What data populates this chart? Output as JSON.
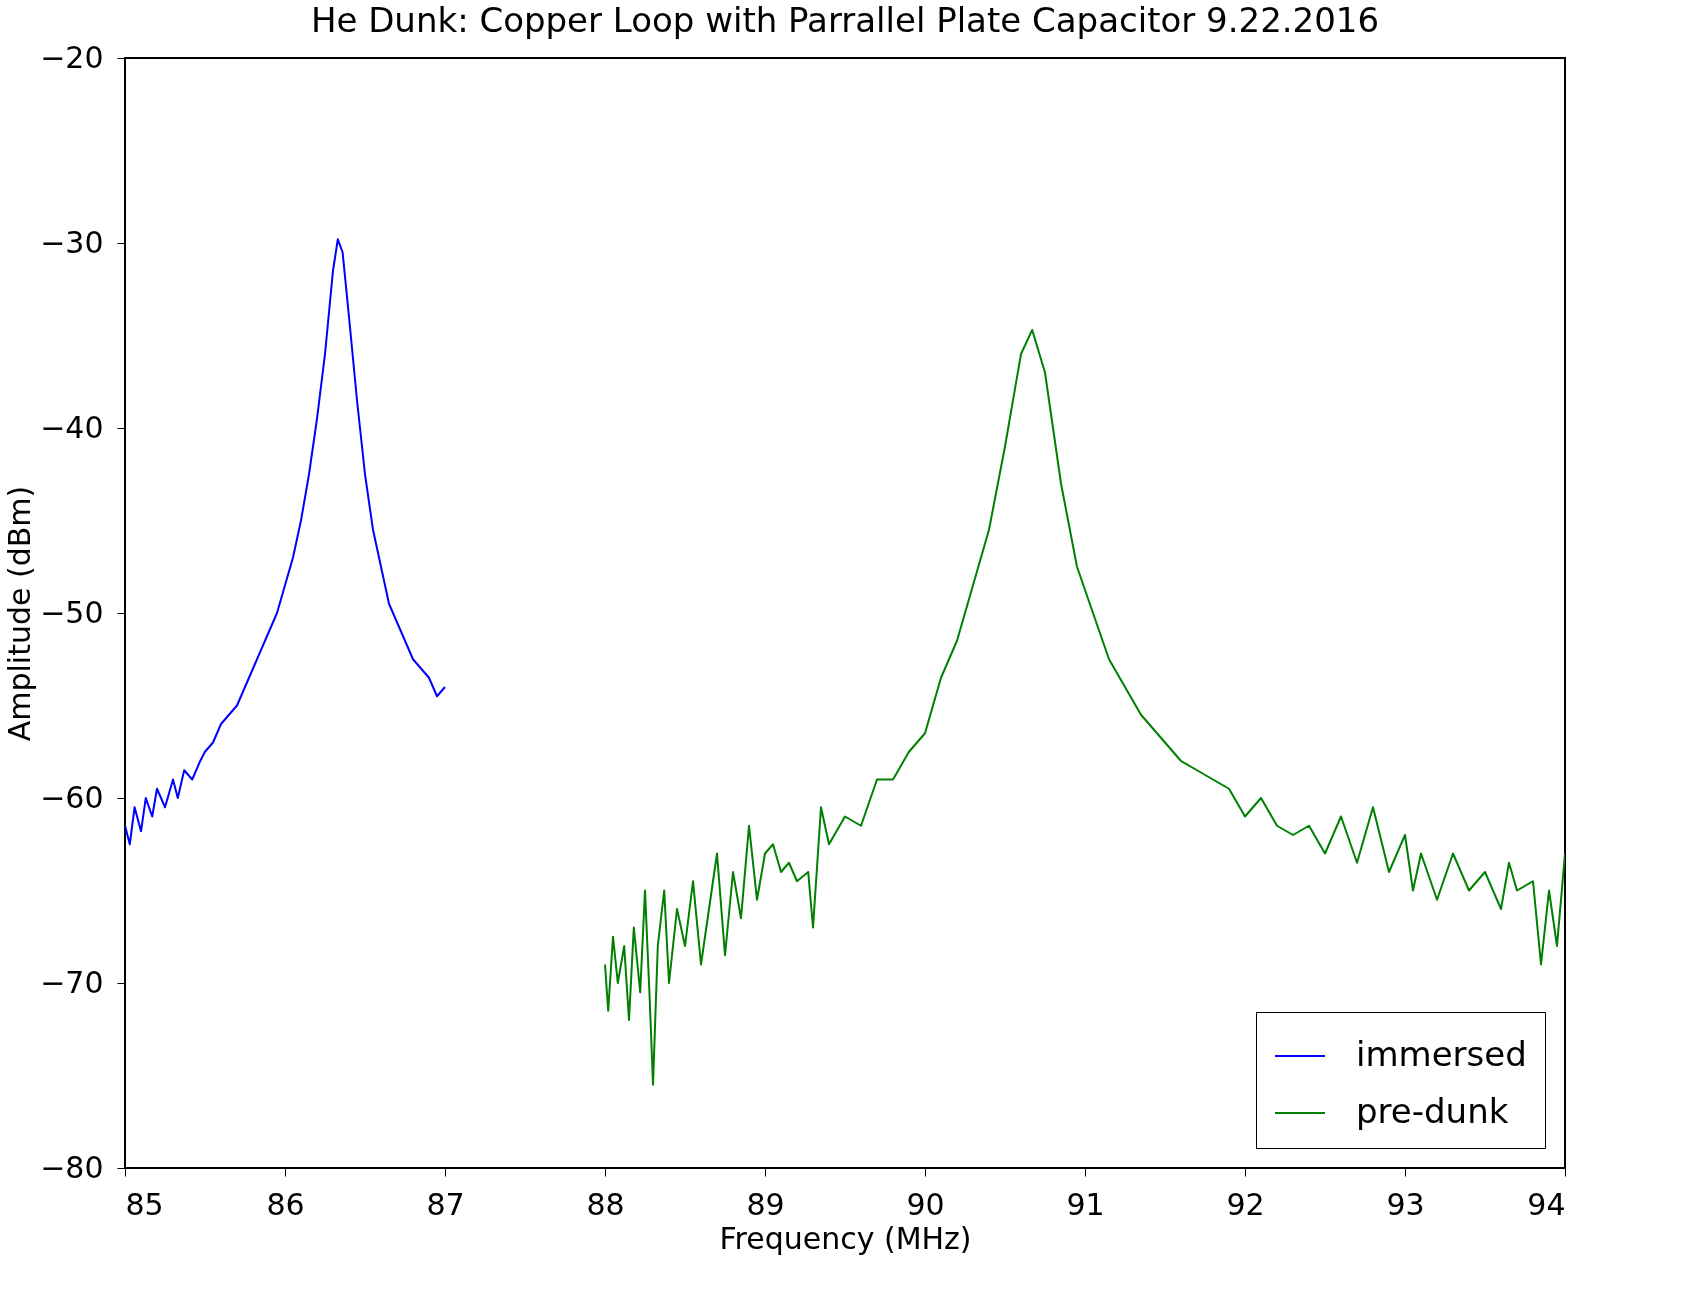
{
  "chart_data": {
    "type": "line",
    "title": "He Dunk: Copper Loop with Parrallel Plate Capacitor 9.22.2016",
    "xlabel": "Frequency (MHz)",
    "ylabel": "Amplitude (dBm)",
    "xlim": [
      85,
      94
    ],
    "xticks": [
      85,
      86,
      87,
      88,
      89,
      90,
      91,
      92,
      93,
      94
    ],
    "ylim": [
      -80,
      -20
    ],
    "yticks": [
      -80,
      -70,
      -60,
      -50,
      -40,
      -30,
      -20
    ],
    "grid": false,
    "legend": "bottom right",
    "marker": "none",
    "line_style": "solid",
    "series": [
      {
        "name": "immersed",
        "color": "#0000ff",
        "x": [
          85.0,
          85.03,
          85.06,
          85.1,
          85.13,
          85.17,
          85.2,
          85.25,
          85.3,
          85.33,
          85.37,
          85.42,
          85.47,
          85.5,
          85.55,
          85.6,
          85.65,
          85.7,
          85.75,
          85.8,
          85.85,
          85.9,
          85.95,
          86.0,
          86.05,
          86.1,
          86.15,
          86.2,
          86.25,
          86.3,
          86.33,
          86.36,
          86.4,
          86.45,
          86.5,
          86.55,
          86.6,
          86.65,
          86.7,
          86.75,
          86.8,
          86.85,
          86.9,
          86.95,
          87.0
        ],
        "values": [
          -61.5,
          -62.5,
          -60.5,
          -61.8,
          -60,
          -61,
          -59.5,
          -60.5,
          -59,
          -60,
          -58.5,
          -59,
          -58,
          -57.5,
          -57,
          -56,
          -55.5,
          -55,
          -54,
          -53,
          -52,
          -51,
          -50,
          -48.5,
          -47,
          -45,
          -42.5,
          -39.5,
          -36,
          -31.5,
          -29.8,
          -30.5,
          -34,
          -38.5,
          -42.5,
          -45.5,
          -47.5,
          -49.5,
          -50.5,
          -51.5,
          -52.5,
          -53,
          -53.5,
          -54.5,
          -54
        ]
      },
      {
        "name": "pre-dunk",
        "color": "#008000",
        "x": [
          88.0,
          88.02,
          88.05,
          88.08,
          88.12,
          88.15,
          88.18,
          88.22,
          88.25,
          88.28,
          88.3,
          88.33,
          88.37,
          88.4,
          88.45,
          88.5,
          88.55,
          88.6,
          88.65,
          88.7,
          88.75,
          88.8,
          88.85,
          88.9,
          88.95,
          89.0,
          89.05,
          89.1,
          89.15,
          89.2,
          89.27,
          89.3,
          89.35,
          89.4,
          89.5,
          89.6,
          89.7,
          89.8,
          89.9,
          90.0,
          90.1,
          90.2,
          90.3,
          90.4,
          90.5,
          90.6,
          90.67,
          90.75,
          90.85,
          90.95,
          91.05,
          91.15,
          91.25,
          91.35,
          91.5,
          91.6,
          91.7,
          91.8,
          91.9,
          92.0,
          92.1,
          92.2,
          92.3,
          92.4,
          92.5,
          92.6,
          92.7,
          92.8,
          92.9,
          93.0,
          93.05,
          93.1,
          93.2,
          93.3,
          93.4,
          93.5,
          93.6,
          93.65,
          93.7,
          93.8,
          93.85,
          93.9,
          93.95,
          94.0
        ],
        "values": [
          -69,
          -71.5,
          -67.5,
          -70,
          -68,
          -72,
          -67,
          -70.5,
          -65,
          -71,
          -75.5,
          -68,
          -65,
          -70,
          -66,
          -68,
          -64.5,
          -69,
          -66,
          -63,
          -68.5,
          -64,
          -66.5,
          -61.5,
          -65.5,
          -63,
          -62.5,
          -64,
          -63.5,
          -64.5,
          -64,
          -67,
          -60.5,
          -62.5,
          -61,
          -61.5,
          -59,
          -59,
          -57.5,
          -56.5,
          -53.5,
          -51.5,
          -48.5,
          -45.5,
          -41,
          -36,
          -34.7,
          -37,
          -43,
          -47.5,
          -50,
          -52.5,
          -54,
          -55.5,
          -57,
          -58,
          -58.5,
          -59,
          -59.5,
          -61,
          -60,
          -61.5,
          -62,
          -61.5,
          -63,
          -61,
          -63.5,
          -60.5,
          -64,
          -62,
          -65,
          -63,
          -65.5,
          -63,
          -65,
          -64,
          -66,
          -63.5,
          -65,
          -64.5,
          -69,
          -65,
          -68,
          -63
        ]
      }
    ]
  }
}
